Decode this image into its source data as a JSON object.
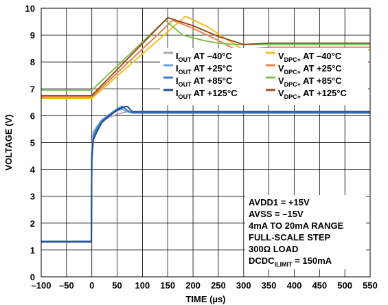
{
  "chart_data": {
    "type": "line",
    "xlabel": "TIME (µs)",
    "ylabel": "VOLTAGE (V)",
    "xlim": [
      -100,
      550
    ],
    "ylim": [
      0,
      10
    ],
    "xticks": [
      -100,
      -50,
      0,
      50,
      100,
      150,
      200,
      250,
      300,
      350,
      400,
      450,
      500,
      550
    ],
    "yticks": [
      0,
      1,
      2,
      3,
      4,
      5,
      6,
      7,
      8,
      9,
      10
    ],
    "xtick_labels": [
      "–100",
      "–50",
      "0",
      "50",
      "100",
      "150",
      "200",
      "250",
      "300",
      "350",
      "400",
      "450",
      "500",
      "550"
    ],
    "ytick_labels": [
      "0",
      "1",
      "2",
      "3",
      "4",
      "5",
      "6",
      "7",
      "8",
      "9",
      "10"
    ],
    "grid": true,
    "legend_position": "upper-right",
    "series": [
      {
        "legend": {
          "base": "I",
          "sub": "OUT",
          "rest": " AT –40°C"
        },
        "color": "#a9a9b8",
        "x": [
          -100,
          -1,
          0,
          3,
          10,
          20,
          35,
          50,
          60,
          70,
          80,
          100,
          200,
          300,
          400,
          550
        ],
        "y": [
          1.32,
          1.32,
          4.6,
          5.4,
          5.6,
          5.8,
          5.95,
          6.05,
          6.1,
          6.15,
          6.1,
          6.1,
          6.1,
          6.1,
          6.1,
          6.1
        ]
      },
      {
        "legend": {
          "base": "I",
          "sub": "OUT",
          "rest": " AT +25°C"
        },
        "color": "#6a9fd4",
        "x": [
          -100,
          -1,
          0,
          3,
          10,
          20,
          35,
          50,
          60,
          70,
          80,
          100,
          200,
          300,
          400,
          550
        ],
        "y": [
          1.32,
          1.32,
          4.6,
          5.3,
          5.6,
          5.85,
          6.05,
          6.2,
          6.25,
          6.15,
          6.1,
          6.1,
          6.1,
          6.1,
          6.1,
          6.1
        ]
      },
      {
        "legend": {
          "base": "I",
          "sub": "OUT",
          "rest": " AT +85°C"
        },
        "color": "#3e78c2",
        "x": [
          -100,
          -1,
          0,
          3,
          10,
          20,
          35,
          50,
          60,
          70,
          80,
          100,
          200,
          300,
          400,
          550
        ],
        "y": [
          1.32,
          1.32,
          4.5,
          5.2,
          5.5,
          5.8,
          6.05,
          6.25,
          6.35,
          6.2,
          6.1,
          6.1,
          6.1,
          6.1,
          6.1,
          6.1
        ]
      },
      {
        "legend": {
          "base": "I",
          "sub": "OUT",
          "rest": " AT +125°C"
        },
        "color": "#1f4e8c",
        "x": [
          -100,
          -1,
          0,
          3,
          10,
          20,
          35,
          50,
          60,
          70,
          80,
          100,
          200,
          300,
          400,
          550
        ],
        "y": [
          1.3,
          1.3,
          4.4,
          5.1,
          5.4,
          5.75,
          6.0,
          6.2,
          6.3,
          6.35,
          6.15,
          6.15,
          6.15,
          6.15,
          6.15,
          6.15
        ]
      },
      {
        "legend": {
          "base": "V",
          "sub": "DPC+",
          "rest": " AT –40°C"
        },
        "color": "#f2c11d",
        "x": [
          -100,
          0,
          185,
          230,
          270,
          300,
          330,
          400,
          550
        ],
        "y": [
          6.65,
          6.65,
          9.7,
          9.3,
          8.8,
          8.45,
          8.4,
          8.45,
          8.45
        ]
      },
      {
        "legend": {
          "base": "V",
          "sub": "DPC+",
          "rest": " AT +25°C"
        },
        "color": "#e8854f",
        "x": [
          -100,
          0,
          160,
          200,
          250,
          280,
          300,
          350,
          550
        ],
        "y": [
          6.7,
          6.7,
          9.55,
          9.25,
          8.8,
          8.5,
          8.45,
          8.55,
          8.55
        ]
      },
      {
        "legend": {
          "base": "V",
          "sub": "DPC+",
          "rest": " AT +85°C"
        },
        "color": "#7ec04f",
        "x": [
          -100,
          0,
          145,
          180,
          220,
          250,
          280,
          550
        ],
        "y": [
          6.95,
          6.95,
          9.55,
          9.0,
          8.8,
          8.7,
          8.65,
          8.65
        ]
      },
      {
        "legend": {
          "base": "V",
          "sub": "DPC+",
          "rest": " AT +125°C"
        },
        "color": "#9c4a1e",
        "x": [
          -100,
          0,
          150,
          200,
          250,
          300,
          350,
          550
        ],
        "y": [
          6.75,
          6.75,
          9.65,
          9.35,
          8.95,
          8.65,
          8.7,
          8.7
        ]
      }
    ],
    "annotation_lines": [
      {
        "base": "AVDD1 = +15V",
        "sub": "",
        "rest": ""
      },
      {
        "base": "AVSS = –15V",
        "sub": "",
        "rest": ""
      },
      {
        "base": "4mA TO 20mA RANGE",
        "sub": "",
        "rest": ""
      },
      {
        "base": "FULL-SCALE STEP",
        "sub": "",
        "rest": ""
      },
      {
        "base": "300Ω LOAD",
        "sub": "",
        "rest": ""
      },
      {
        "base": "DCDC",
        "sub": "ILIMIT",
        "rest": " = 150mA"
      }
    ]
  }
}
